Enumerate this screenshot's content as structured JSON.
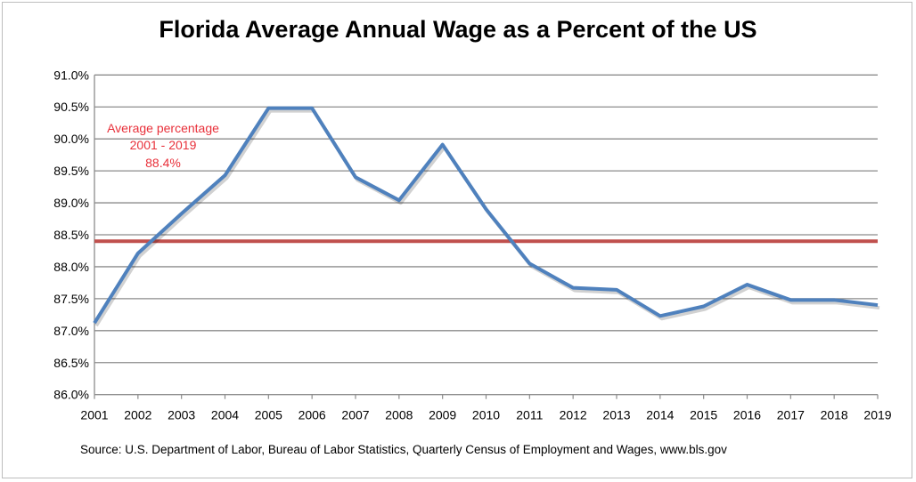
{
  "chart_data": {
    "type": "line",
    "title": "Florida Average Annual Wage as a Percent of the US",
    "xlabel": "",
    "ylabel": "",
    "categories": [
      "2001",
      "2002",
      "2003",
      "2004",
      "2005",
      "2006",
      "2007",
      "2008",
      "2009",
      "2010",
      "2011",
      "2012",
      "2013",
      "2014",
      "2015",
      "2016",
      "2017",
      "2018",
      "2019"
    ],
    "series": [
      {
        "name": "Florida wage as % of US",
        "color": "#4f81bd",
        "values": [
          87.12,
          88.21,
          88.83,
          89.43,
          90.48,
          90.48,
          89.4,
          89.04,
          89.91,
          88.9,
          88.05,
          87.67,
          87.64,
          87.23,
          87.38,
          87.72,
          87.48,
          87.48,
          87.4
        ]
      }
    ],
    "reference_line": {
      "value": 88.4,
      "color": "#c0504d"
    },
    "annotation": [
      "Average percentage",
      "2001 - 2019",
      "88.4%"
    ],
    "ylim": [
      86.0,
      91.0
    ],
    "yticks": [
      "86.0%",
      "86.5%",
      "87.0%",
      "87.5%",
      "88.0%",
      "88.5%",
      "89.0%",
      "89.5%",
      "90.0%",
      "90.5%",
      "91.0%"
    ],
    "grid": true,
    "source": "Source:  U.S. Department of Labor, Bureau of Labor Statistics, Quarterly Census of Employment and Wages, www.bls.gov"
  }
}
